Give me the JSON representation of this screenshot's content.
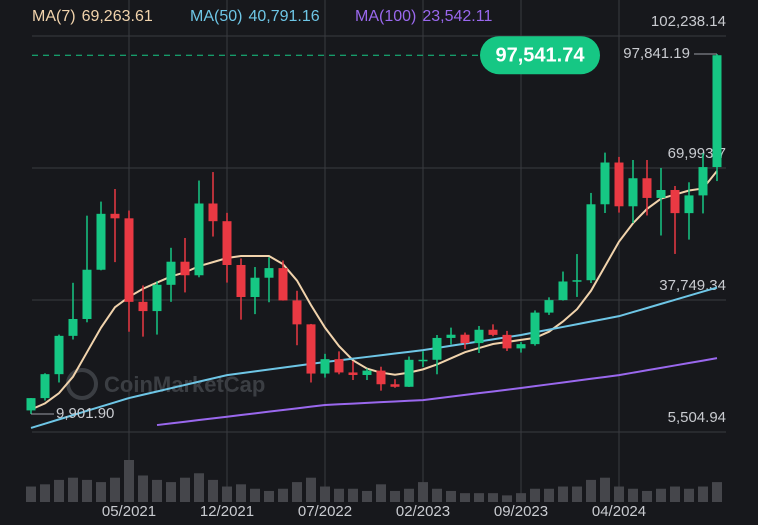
{
  "chart_data": {
    "type": "candlestick",
    "watermark": "CoinMarketCap",
    "categories": [
      null,
      null,
      null,
      null,
      null,
      null,
      null,
      "05/2021",
      null,
      null,
      null,
      null,
      null,
      null,
      "12/2021",
      null,
      null,
      null,
      null,
      null,
      null,
      "07/2022",
      null,
      null,
      null,
      null,
      null,
      null,
      "02/2023",
      null,
      null,
      null,
      null,
      null,
      null,
      "09/2023",
      null,
      null,
      null,
      null,
      null,
      null,
      "04/2024",
      null,
      null,
      null,
      null,
      null,
      null,
      null
    ],
    "open": [
      10780,
      13780,
      19630,
      28990,
      33110,
      45140,
      58800,
      57700,
      37300,
      35040,
      41460,
      47100,
      43790,
      61320,
      57000,
      46300,
      38480,
      43190,
      45540,
      37640,
      31800,
      19780,
      23300,
      20050,
      19430,
      20500,
      17170,
      16550,
      23140,
      23150,
      28480,
      29270,
      27220,
      30480,
      29230,
      25930,
      26970,
      34670,
      37720,
      42270,
      42580,
      61130,
      71330,
      60640,
      67490,
      62680,
      64620,
      58970,
      63300,
      70220
    ],
    "high": [
      13800,
      19860,
      29300,
      41950,
      58350,
      61790,
      64860,
      59600,
      41300,
      42300,
      50500,
      52900,
      66930,
      69000,
      59040,
      47900,
      45800,
      48200,
      47400,
      40000,
      31900,
      24600,
      25200,
      22800,
      21000,
      21450,
      18400,
      23950,
      25250,
      29200,
      31000,
      29800,
      31400,
      31800,
      30200,
      27480,
      35200,
      38400,
      44700,
      48970,
      63900,
      73750,
      72700,
      71950,
      71950,
      70000,
      65600,
      66500,
      73600,
      97841.19
    ],
    "low": [
      9901.9,
      13200,
      17600,
      28100,
      32300,
      45000,
      47000,
      30000,
      28800,
      29300,
      37300,
      39600,
      43300,
      53250,
      42000,
      32950,
      34300,
      37200,
      37600,
      26700,
      17600,
      18800,
      19600,
      18200,
      18200,
      15600,
      16300,
      16500,
      21400,
      19600,
      26900,
      25800,
      24800,
      28900,
      25300,
      24900,
      26600,
      34100,
      37600,
      38500,
      41900,
      59000,
      59100,
      56550,
      58400,
      53500,
      49000,
      52500,
      58900,
      66800
    ],
    "close": [
      13780,
      19630,
      28990,
      33110,
      45140,
      58800,
      57700,
      37300,
      35040,
      41460,
      47100,
      43790,
      61320,
      57000,
      46300,
      38480,
      43190,
      45540,
      37640,
      31800,
      19780,
      23300,
      20050,
      19430,
      20500,
      17170,
      16550,
      23140,
      23150,
      28480,
      29270,
      27220,
      30480,
      29230,
      25930,
      26970,
      34670,
      37720,
      42270,
      42580,
      61130,
      71330,
      60640,
      67490,
      62680,
      64620,
      58970,
      63300,
      70220,
      97541.74
    ],
    "up_color": "#16c784",
    "down_color": "#ea3943",
    "volume": [
      14,
      16,
      20,
      22,
      20,
      18,
      22,
      38,
      24,
      20,
      18,
      22,
      26,
      20,
      14,
      16,
      12,
      10,
      12,
      18,
      22,
      14,
      12,
      12,
      10,
      16,
      10,
      12,
      18,
      12,
      10,
      8,
      8,
      8,
      6,
      8,
      12,
      12,
      14,
      14,
      20,
      22,
      14,
      12,
      10,
      12,
      14,
      12,
      14,
      18
    ],
    "volume_color": "#45464b",
    "series": [
      {
        "name": "MA(7)",
        "value_label": "69,263.61",
        "color": "#f1d3ac",
        "values": [
          11000,
          12500,
          15000,
          19000,
          25000,
          31000,
          36000,
          38500,
          40500,
          42000,
          43500,
          44500,
          46000,
          47000,
          48000,
          48500,
          48500,
          48500,
          46500,
          42500,
          36500,
          31000,
          26500,
          23000,
          21000,
          20000,
          19500,
          20000,
          20800,
          22000,
          23500,
          25000,
          26000,
          27000,
          27500,
          28000,
          28500,
          30000,
          32500,
          35500,
          40000,
          46000,
          52000,
          56500,
          60000,
          62500,
          63500,
          64500,
          65000,
          69263.61
        ]
      },
      {
        "name": "MA(50)",
        "value_label": "40,791.16",
        "color": "#6ec6e6",
        "values": [
          6500,
          7540,
          8590,
          9630,
          10670,
          11710,
          12760,
          13800,
          14600,
          15400,
          16200,
          17000,
          17800,
          18600,
          19400,
          19860,
          20310,
          20770,
          21230,
          21690,
          22140,
          22600,
          23010,
          23430,
          23840,
          24260,
          24670,
          25090,
          25500,
          26030,
          26560,
          27090,
          27610,
          28140,
          28670,
          29200,
          29860,
          30510,
          31170,
          31830,
          32490,
          33140,
          33800,
          34800,
          35800,
          36800,
          37800,
          38800,
          39800,
          40791.16
        ]
      },
      {
        "name": "MA(100)",
        "value_label": "23,542.11",
        "color": "#9a68ee",
        "values": [
          null,
          null,
          null,
          null,
          null,
          null,
          null,
          null,
          null,
          7200,
          7610,
          8020,
          8430,
          8830,
          9240,
          9650,
          10060,
          10470,
          10880,
          11280,
          11690,
          12100,
          12270,
          12440,
          12610,
          12790,
          12960,
          13130,
          13300,
          13720,
          14140,
          14560,
          14990,
          15410,
          15830,
          16250,
          16700,
          17150,
          17600,
          18050,
          18500,
          18950,
          19400,
          19990,
          20580,
          21170,
          21760,
          22360,
          22950,
          23542.11
        ]
      }
    ],
    "current_price": {
      "value": 97541.74,
      "label": "97,541.74"
    },
    "high_marker": {
      "value": 97841.19,
      "label": "97,841.19"
    },
    "low_marker": {
      "value": 9901.9,
      "label": "9,901.90"
    },
    "ylim": [
      3550,
      111030
    ],
    "yticks": [
      {
        "value": 102238.14,
        "label": "102,238.14"
      },
      {
        "value": 69993.7,
        "label": "69,993.7"
      },
      {
        "value": 37749.34,
        "label": "37,749.34"
      },
      {
        "value": 5504.94,
        "label": "5,504.94"
      }
    ],
    "grid": true
  }
}
